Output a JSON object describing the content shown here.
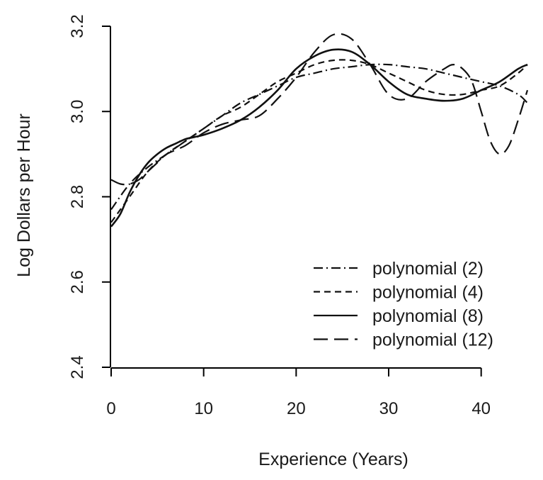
{
  "chart_data": {
    "type": "line",
    "title": "",
    "xlabel": "Experience (Years)",
    "ylabel": "Log Dollars per Hour",
    "xlim": [
      0,
      45
    ],
    "ylim": [
      2.4,
      3.2
    ],
    "x_ticks": [
      0,
      10,
      20,
      30,
      40
    ],
    "y_ticks": [
      2.4,
      2.6,
      2.8,
      3.0,
      3.2
    ],
    "x_tick_labels": [
      "0",
      "10",
      "20",
      "30",
      "40"
    ],
    "y_tick_labels": [
      "2.4",
      "2.6",
      "2.8",
      "3.0",
      "3.2"
    ],
    "grid": false,
    "legend_position": "bottom-right",
    "series": [
      {
        "name": "polynomial (2)",
        "dash": "dash-dot",
        "x": [
          0,
          2,
          4,
          6,
          8,
          10,
          12,
          14,
          16,
          18,
          20,
          22,
          24,
          26,
          28,
          30,
          32,
          34,
          36,
          38,
          40,
          42,
          44,
          45
        ],
        "y": [
          2.77,
          2.83,
          2.87,
          2.9,
          2.93,
          2.96,
          2.99,
          3.02,
          3.04,
          3.06,
          3.08,
          3.09,
          3.1,
          3.105,
          3.11,
          3.11,
          3.105,
          3.1,
          3.09,
          3.08,
          3.07,
          3.06,
          3.04,
          3.02
        ]
      },
      {
        "name": "polynomial (4)",
        "dash": "short-dash",
        "x": [
          0,
          2,
          4,
          6,
          8,
          10,
          12,
          14,
          16,
          18,
          20,
          22,
          24,
          26,
          28,
          30,
          32,
          34,
          36,
          38,
          40,
          42,
          44,
          45
        ],
        "y": [
          2.74,
          2.8,
          2.86,
          2.9,
          2.93,
          2.96,
          2.99,
          3.01,
          3.04,
          3.07,
          3.09,
          3.11,
          3.12,
          3.12,
          3.11,
          3.09,
          3.07,
          3.05,
          3.04,
          3.04,
          3.05,
          3.06,
          3.09,
          3.11
        ]
      },
      {
        "name": "polynomial (8)",
        "dash": "solid",
        "x": [
          0,
          1,
          2,
          3,
          4,
          5,
          6,
          7,
          8,
          9,
          10,
          12,
          14,
          16,
          18,
          20,
          22,
          24,
          26,
          28,
          30,
          32,
          34,
          36,
          38,
          40,
          42,
          44,
          45
        ],
        "y": [
          2.73,
          2.76,
          2.81,
          2.85,
          2.88,
          2.9,
          2.915,
          2.925,
          2.935,
          2.94,
          2.945,
          2.96,
          2.98,
          3.01,
          3.05,
          3.1,
          3.13,
          3.145,
          3.14,
          3.11,
          3.07,
          3.04,
          3.03,
          3.025,
          3.03,
          3.05,
          3.07,
          3.1,
          3.11
        ]
      },
      {
        "name": "polynomial (12)",
        "dash": "long-dash",
        "x": [
          0,
          1,
          2,
          3,
          4,
          5,
          6,
          8,
          10,
          12,
          14,
          16,
          18,
          20,
          22,
          24,
          26,
          28,
          30,
          32,
          34,
          36,
          37,
          38,
          39,
          40,
          41,
          42,
          43,
          44,
          45
        ],
        "y": [
          2.84,
          2.83,
          2.83,
          2.84,
          2.86,
          2.88,
          2.9,
          2.92,
          2.95,
          2.97,
          2.98,
          2.99,
          3.03,
          3.08,
          3.14,
          3.18,
          3.17,
          3.11,
          3.04,
          3.03,
          3.07,
          3.1,
          3.11,
          3.1,
          3.07,
          3.0,
          2.93,
          2.9,
          2.92,
          2.98,
          3.05
        ]
      }
    ]
  }
}
